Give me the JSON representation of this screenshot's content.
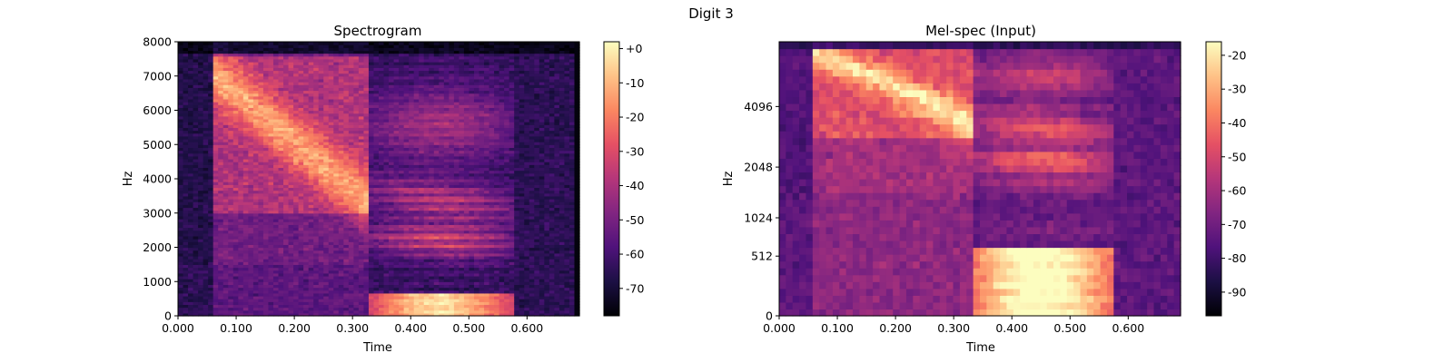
{
  "figure": {
    "suptitle": "Digit 3"
  },
  "chart_data": [
    {
      "type": "heatmap",
      "title": "Spectrogram",
      "xlabel": "Time",
      "ylabel": "Hz",
      "xlim": [
        0,
        0.69
      ],
      "ylim": [
        0,
        8000
      ],
      "x_ticks": [
        0,
        0.1,
        0.2,
        0.3,
        0.4,
        0.5,
        0.6
      ],
      "x_tick_labels": [
        "0.000",
        "0.100",
        "0.200",
        "0.300",
        "0.400",
        "0.500",
        "0.600"
      ],
      "y_ticks": [
        0,
        1000,
        2000,
        3000,
        4000,
        5000,
        6000,
        7000,
        8000
      ],
      "y_tick_labels": [
        "0",
        "1000",
        "2000",
        "3000",
        "4000",
        "5000",
        "6000",
        "7000",
        "8000"
      ],
      "colorbar": {
        "vmin": -78,
        "vmax": 2,
        "ticks": [
          0,
          -10,
          -20,
          -30,
          -40,
          -50,
          -60,
          -70
        ],
        "tick_labels": [
          "+0",
          "-10",
          "-20",
          "-30",
          "-40",
          "-50",
          "-60",
          "-70"
        ]
      },
      "colormap": "magma",
      "grid": false
    },
    {
      "type": "heatmap",
      "title": "Mel-spec (Input)",
      "xlabel": "Time",
      "ylabel": "Hz",
      "xlim": [
        0,
        0.69
      ],
      "y_scale": "mel",
      "x_ticks": [
        0,
        0.1,
        0.2,
        0.3,
        0.4,
        0.5,
        0.6
      ],
      "x_tick_labels": [
        "0.000",
        "0.100",
        "0.200",
        "0.300",
        "0.400",
        "0.500",
        "0.600"
      ],
      "y_ticks": [
        0,
        512,
        1024,
        2048,
        4096
      ],
      "y_tick_labels": [
        "0",
        "512",
        "1024",
        "2048",
        "4096"
      ],
      "colorbar": {
        "vmin": -97,
        "vmax": -16,
        "ticks": [
          -20,
          -30,
          -40,
          -50,
          -60,
          -70,
          -80,
          -90
        ],
        "tick_labels": [
          "-20",
          "-30",
          "-40",
          "-50",
          "-60",
          "-70",
          "-80",
          "-90"
        ]
      },
      "colormap": "magma",
      "grid": false
    }
  ]
}
